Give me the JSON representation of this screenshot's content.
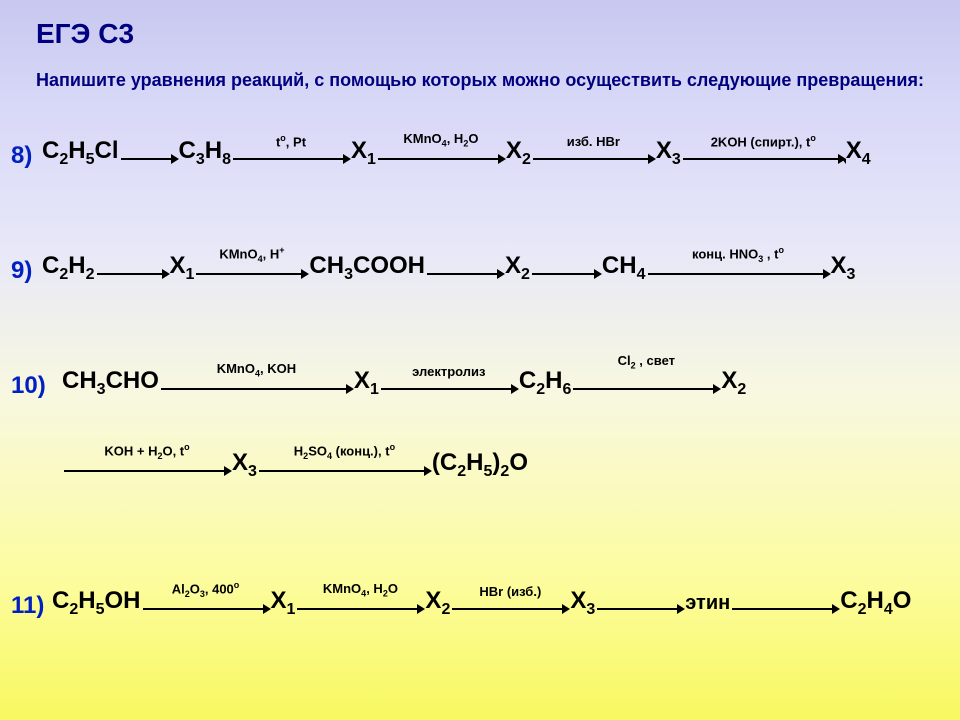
{
  "title": "ЕГЭ С3",
  "subtitle": "Напишите уравнения реакций, с помощью которых можно осуществить следующие превращения:",
  "colors": {
    "title_color": "#000080",
    "number_color": "#0020c0",
    "compound_color": "#000000",
    "label_color": "#000000",
    "arrow_color": "#000000"
  },
  "rows": {
    "r8": {
      "num": "8)",
      "compounds": [
        "C₂H₅Cl",
        "C₃H₈",
        "X₁",
        "X₂",
        "X₃",
        "X₄"
      ],
      "labels": [
        "",
        "tº, Pt",
        "KMnO₄, H₂O",
        "изб. HBr",
        "2KOH (спирт.), tº"
      ]
    },
    "r9": {
      "num": "9)",
      "compounds": [
        "C₂H₂",
        "X₁",
        "CH₃COOH",
        "X₂",
        "CH₄",
        "X₃"
      ],
      "labels": [
        "",
        "KMnO₄, H⁺",
        "",
        "",
        "конц. HNO₃ , tº"
      ]
    },
    "r10a": {
      "num": "10)",
      "compounds": [
        "CH₃CHO",
        "X₁",
        "C₂H₆",
        "X₂"
      ],
      "labels": [
        "KMnO₄, KOH",
        "электролиз",
        "Cl₂ , свет"
      ]
    },
    "r10b": {
      "compounds": [
        "X₃",
        "(C₂H₅)₂O"
      ],
      "labels_pre": "KOH + H₂O, tº",
      "labels": [
        "H₂SO₄ (конц.), tº"
      ]
    },
    "r11": {
      "num": "11)",
      "compounds": [
        "C₂H₅OH",
        "X₁",
        "X₂",
        "X₃",
        "этин",
        "C₂H₄O"
      ],
      "labels": [
        "Al₂O₃, 400º",
        "KMnO₄, H₂O",
        "HBr (изб.)",
        "",
        ""
      ],
      "plain": [
        false,
        false,
        false,
        false,
        true,
        false
      ]
    }
  }
}
